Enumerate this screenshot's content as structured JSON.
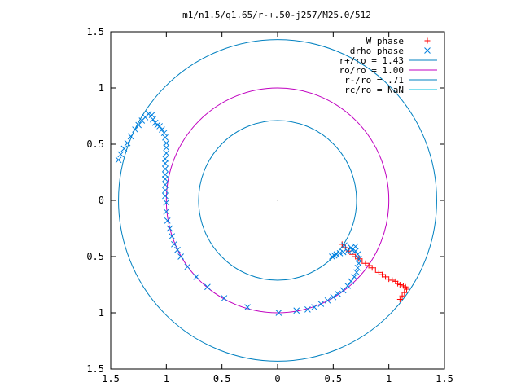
{
  "chart_data": {
    "type": "scatter",
    "title": "m1/n1.5/q1.65/r-+.50-j257/M25.0/512",
    "xlim": [
      -1.5,
      1.5
    ],
    "ylim": [
      -1.5,
      1.5
    ],
    "grid": false,
    "legend_position": "top-right",
    "x_ticks": [
      {
        "value": -1.5,
        "label": "1.5"
      },
      {
        "value": -1,
        "label": "1"
      },
      {
        "value": -0.5,
        "label": "0.5"
      },
      {
        "value": 0,
        "label": "0"
      },
      {
        "value": 0.5,
        "label": "0.5"
      },
      {
        "value": 1,
        "label": "1"
      },
      {
        "value": 1.5,
        "label": "1.5"
      }
    ],
    "y_ticks": [
      {
        "value": 1.5,
        "label": "1.5"
      },
      {
        "value": 1,
        "label": "1"
      },
      {
        "value": 0.5,
        "label": "0.5"
      },
      {
        "value": 0,
        "label": "0"
      },
      {
        "value": -0.5,
        "label": "0.5"
      },
      {
        "value": -1,
        "label": "1"
      },
      {
        "value": -1.5,
        "label": "1.5"
      }
    ],
    "circles": [
      {
        "name": "r+/ro = 1.43",
        "radius": 1.43,
        "color": "#0080c0"
      },
      {
        "name": "ro/ro = 1.00",
        "radius": 1.0,
        "color": "#c000c0"
      },
      {
        "name": "r-/ro = .71",
        "radius": 0.71,
        "color": "#0080c0"
      },
      {
        "name": "rc/ro = NaN",
        "radius": null,
        "color": "#00c0e0"
      }
    ],
    "series": [
      {
        "name": "W phase",
        "marker": "plus",
        "color": "#ff0000",
        "points": [
          [
            0.58,
            -0.39
          ],
          [
            0.61,
            -0.42
          ],
          [
            0.64,
            -0.45
          ],
          [
            0.67,
            -0.48
          ],
          [
            0.7,
            -0.5
          ],
          [
            0.73,
            -0.52
          ],
          [
            0.76,
            -0.54
          ],
          [
            0.79,
            -0.56
          ],
          [
            0.82,
            -0.58
          ],
          [
            0.85,
            -0.6
          ],
          [
            0.88,
            -0.62
          ],
          [
            0.91,
            -0.64
          ],
          [
            0.94,
            -0.66
          ],
          [
            0.97,
            -0.68
          ],
          [
            1.0,
            -0.7
          ],
          [
            1.03,
            -0.71
          ],
          [
            1.06,
            -0.72
          ],
          [
            1.08,
            -0.74
          ],
          [
            1.1,
            -0.75
          ],
          [
            1.13,
            -0.76
          ],
          [
            1.15,
            -0.77
          ],
          [
            1.16,
            -0.79
          ],
          [
            1.14,
            -0.82
          ],
          [
            1.12,
            -0.85
          ],
          [
            1.1,
            -0.88
          ]
        ]
      },
      {
        "name": "drho phase",
        "marker": "cross",
        "color": "#0080e0",
        "points": [
          [
            -1.43,
            0.36
          ],
          [
            -1.41,
            0.41
          ],
          [
            -1.38,
            0.46
          ],
          [
            -1.35,
            0.51
          ],
          [
            -1.32,
            0.57
          ],
          [
            -1.28,
            0.63
          ],
          [
            -1.25,
            0.67
          ],
          [
            -1.22,
            0.71
          ],
          [
            -1.19,
            0.74
          ],
          [
            -1.16,
            0.77
          ],
          [
            -1.13,
            0.76
          ],
          [
            -1.12,
            0.72
          ],
          [
            -1.1,
            0.69
          ],
          [
            -1.08,
            0.67
          ],
          [
            -1.06,
            0.66
          ],
          [
            -1.04,
            0.63
          ],
          [
            -1.02,
            0.6
          ],
          [
            -1.01,
            0.56
          ],
          [
            -1.0,
            0.51
          ],
          [
            -1.0,
            0.47
          ],
          [
            -1.0,
            0.42
          ],
          [
            -1.01,
            0.37
          ],
          [
            -1.01,
            0.33
          ],
          [
            -1.01,
            0.28
          ],
          [
            -1.01,
            0.23
          ],
          [
            -1.01,
            0.19
          ],
          [
            -1.01,
            0.14
          ],
          [
            -1.01,
            0.09
          ],
          [
            -1.01,
            0.04
          ],
          [
            -1.0,
            -0.02
          ],
          [
            -1.0,
            -0.1
          ],
          [
            -0.99,
            -0.18
          ],
          [
            -0.97,
            -0.25
          ],
          [
            -0.95,
            -0.32
          ],
          [
            -0.93,
            -0.39
          ],
          [
            -0.9,
            -0.44
          ],
          [
            -0.87,
            -0.5
          ],
          [
            -0.81,
            -0.59
          ],
          [
            -0.73,
            -0.68
          ],
          [
            -0.63,
            -0.77
          ],
          [
            -0.48,
            -0.87
          ],
          [
            -0.27,
            -0.95
          ],
          [
            0.01,
            -1.0
          ],
          [
            0.17,
            -0.98
          ],
          [
            0.27,
            -0.97
          ],
          [
            0.33,
            -0.95
          ],
          [
            0.39,
            -0.92
          ],
          [
            0.45,
            -0.89
          ],
          [
            0.5,
            -0.86
          ],
          [
            0.54,
            -0.83
          ],
          [
            0.59,
            -0.8
          ],
          [
            0.63,
            -0.76
          ],
          [
            0.66,
            -0.72
          ],
          [
            0.69,
            -0.68
          ],
          [
            0.71,
            -0.64
          ],
          [
            0.72,
            -0.6
          ],
          [
            0.73,
            -0.56
          ],
          [
            0.73,
            -0.52
          ],
          [
            0.72,
            -0.48
          ],
          [
            0.7,
            -0.45
          ],
          [
            0.67,
            -0.44
          ],
          [
            0.63,
            -0.45
          ],
          [
            0.59,
            -0.46
          ],
          [
            0.56,
            -0.47
          ],
          [
            0.53,
            -0.48
          ],
          [
            0.51,
            -0.49
          ],
          [
            0.49,
            -0.5
          ],
          [
            0.6,
            -0.4
          ],
          [
            0.66,
            -0.42
          ],
          [
            0.7,
            -0.41
          ]
        ]
      }
    ]
  }
}
